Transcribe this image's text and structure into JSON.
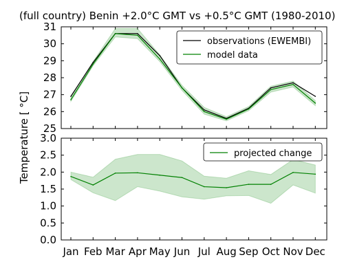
{
  "chart_data": {
    "title": "(full country) Benin +2.0°C GMT vs +0.5°C GMT (1980-2010)",
    "ylabel": "Temperature [ °C]",
    "categories": [
      "Jan",
      "Feb",
      "Mar",
      "Apr",
      "May",
      "Jun",
      "Jul",
      "Aug",
      "Sep",
      "Oct",
      "Nov",
      "Dec"
    ],
    "panels": [
      {
        "type": "line",
        "ylim": [
          25,
          31
        ],
        "yticks": [
          "25",
          "26",
          "27",
          "28",
          "29",
          "30",
          "31"
        ],
        "legend_position": "top-right",
        "series": [
          {
            "name": "observations (EWEMBI)",
            "color": "#000000",
            "values": [
              26.9,
              28.9,
              30.6,
              30.6,
              29.3,
              27.4,
              26.1,
              25.6,
              26.2,
              27.4,
              27.7,
              26.9
            ]
          },
          {
            "name": "model data",
            "color": "#008000",
            "values": [
              26.7,
              28.8,
              30.6,
              30.5,
              29.1,
              27.4,
              26.0,
              25.55,
              26.15,
              27.3,
              27.6,
              26.5
            ],
            "band_upper": [
              26.85,
              28.95,
              30.9,
              30.9,
              29.35,
              27.55,
              26.25,
              25.7,
              26.3,
              27.5,
              27.8,
              26.65
            ],
            "band_lower": [
              26.6,
              28.7,
              30.4,
              30.3,
              28.95,
              27.25,
              25.85,
              25.45,
              26.05,
              27.15,
              27.45,
              26.35
            ]
          }
        ]
      },
      {
        "type": "line",
        "ylim": [
          0.0,
          3.0
        ],
        "yticks": [
          "0.0",
          "0.5",
          "1.0",
          "1.5",
          "2.0",
          "2.5",
          "3.0"
        ],
        "legend_position": "top-right",
        "series": [
          {
            "name": "projected change",
            "color": "#008000",
            "values": [
              1.87,
              1.62,
              1.97,
              1.98,
              1.91,
              1.84,
              1.57,
              1.54,
              1.64,
              1.64,
              1.99,
              1.94
            ],
            "band_upper": [
              2.0,
              1.85,
              2.38,
              2.52,
              2.52,
              2.33,
              1.88,
              1.82,
              2.04,
              1.93,
              2.37,
              2.21
            ],
            "band_lower": [
              1.78,
              1.39,
              1.16,
              1.57,
              1.44,
              1.27,
              1.2,
              1.3,
              1.31,
              1.08,
              1.62,
              1.38
            ]
          }
        ]
      }
    ]
  }
}
